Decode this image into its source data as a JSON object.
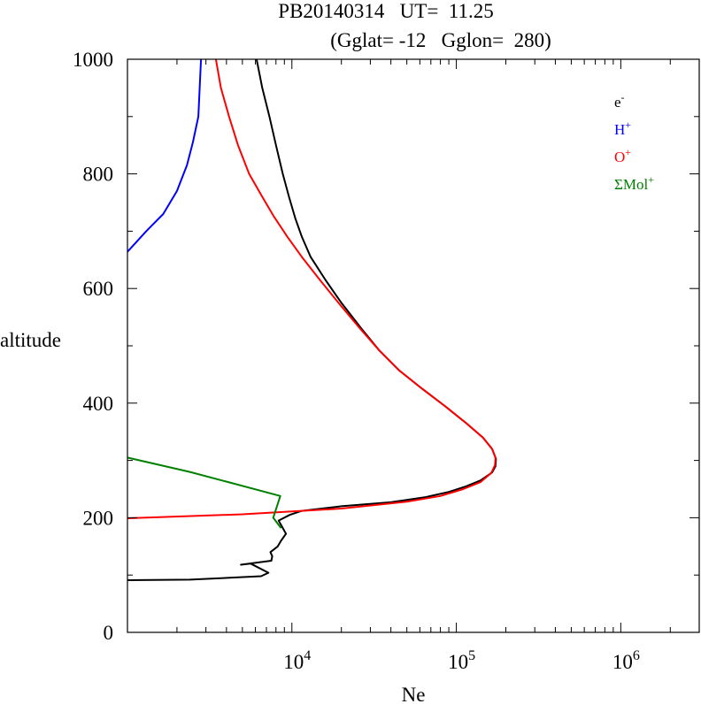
{
  "title": "PB20140314   UT=  11.25",
  "subtitle": "(Gglat= -12   Gglon=  280)",
  "chart_data": {
    "type": "line",
    "xlabel": "Ne",
    "ylabel": "altitude",
    "xscale": "log",
    "xlim": [
      1000,
      3000000
    ],
    "ylim": [
      0,
      1000
    ],
    "x_tick_labels": [
      {
        "base": "10",
        "exp": "4",
        "value": 10000
      },
      {
        "base": "10",
        "exp": "5",
        "value": 100000
      },
      {
        "base": "10",
        "exp": "6",
        "value": 1000000
      }
    ],
    "y_tick_labels": [
      "0",
      "200",
      "400",
      "600",
      "800",
      "1000"
    ],
    "y_tick_values": [
      0,
      200,
      400,
      600,
      800,
      1000
    ],
    "legend_position": "top-right",
    "series": [
      {
        "name": "e-",
        "label_base": "e",
        "label_sup": "-",
        "color": "#000000",
        "points": [
          [
            1000,
            91
          ],
          [
            2400,
            92
          ],
          [
            6500,
            98
          ],
          [
            7200,
            104
          ],
          [
            5600,
            120
          ],
          [
            4900,
            118
          ],
          [
            7500,
            125
          ],
          [
            7600,
            133
          ],
          [
            7400,
            140
          ],
          [
            8200,
            150
          ],
          [
            8600,
            160
          ],
          [
            9200,
            172
          ],
          [
            8300,
            195
          ],
          [
            9700,
            205
          ],
          [
            11500,
            212
          ],
          [
            20000,
            220
          ],
          [
            40000,
            227
          ],
          [
            65000,
            236
          ],
          [
            90000,
            245
          ],
          [
            115000,
            255
          ],
          [
            140000,
            265
          ],
          [
            165000,
            279
          ],
          [
            173000,
            290
          ],
          [
            174000,
            303
          ],
          [
            165000,
            320
          ],
          [
            145000,
            340
          ],
          [
            115000,
            365
          ],
          [
            85000,
            395
          ],
          [
            62000,
            425
          ],
          [
            45000,
            457
          ],
          [
            34000,
            492
          ],
          [
            26500,
            530
          ],
          [
            20000,
            575
          ],
          [
            16000,
            615
          ],
          [
            13000,
            655
          ],
          [
            11500,
            690
          ],
          [
            10500,
            722
          ],
          [
            9600,
            760
          ],
          [
            8800,
            800
          ],
          [
            8000,
            850
          ],
          [
            7300,
            900
          ],
          [
            6600,
            950
          ],
          [
            6100,
            1000
          ]
        ]
      },
      {
        "name": "H+",
        "label_base": "H",
        "label_sup": "+",
        "color": "#0000ff",
        "points": [
          [
            1000,
            664
          ],
          [
            1300,
            700
          ],
          [
            1650,
            730
          ],
          [
            2000,
            770
          ],
          [
            2300,
            815
          ],
          [
            2500,
            855
          ],
          [
            2700,
            900
          ],
          [
            2760,
            960
          ],
          [
            2800,
            1000
          ]
        ]
      },
      {
        "name": "O+",
        "label_base": "O",
        "label_sup": "+",
        "color": "#ff0000",
        "points": [
          [
            1000,
            199
          ],
          [
            5000,
            206
          ],
          [
            20000,
            216
          ],
          [
            50000,
            228
          ],
          [
            80000,
            238
          ],
          [
            110000,
            250
          ],
          [
            140000,
            262
          ],
          [
            163000,
            278
          ],
          [
            172000,
            292
          ],
          [
            173000,
            305
          ],
          [
            165000,
            320
          ],
          [
            145000,
            340
          ],
          [
            115000,
            365
          ],
          [
            85000,
            395
          ],
          [
            62000,
            425
          ],
          [
            45000,
            457
          ],
          [
            34000,
            492
          ],
          [
            26000,
            530
          ],
          [
            19200,
            575
          ],
          [
            14800,
            615
          ],
          [
            11500,
            655
          ],
          [
            9400,
            690
          ],
          [
            7800,
            725
          ],
          [
            6600,
            760
          ],
          [
            5500,
            800
          ],
          [
            4700,
            850
          ],
          [
            4150,
            900
          ],
          [
            3700,
            950
          ],
          [
            3450,
            1000
          ]
        ]
      },
      {
        "name": "ΣMol+",
        "label_base": "ΣMol",
        "label_sup": "+",
        "color": "#008000",
        "points": [
          [
            1000,
            305
          ],
          [
            2400,
            280
          ],
          [
            8500,
            238
          ],
          [
            7700,
            200
          ],
          [
            8600,
            182
          ]
        ]
      }
    ]
  }
}
